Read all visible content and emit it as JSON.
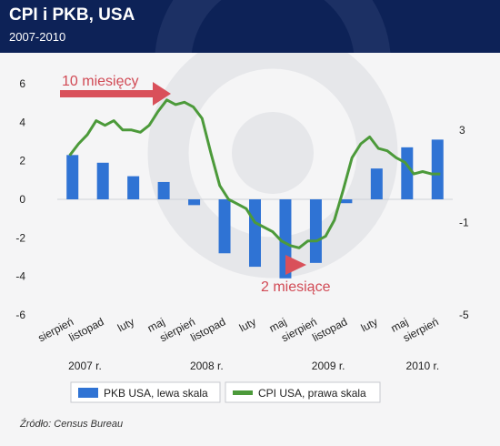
{
  "header": {
    "title": "CPI i PKB, USA",
    "subtitle": "2007-2010"
  },
  "source": "Źródło: Census Bureau",
  "colors": {
    "header_bg": "#0d2257",
    "bars": "#2f73d4",
    "line": "#4c9a3a",
    "arrow": "#d9505a",
    "annotation": "#d14a55"
  },
  "chart_data": {
    "type": "bar+line",
    "left_axis": {
      "ylim": [
        -6,
        6
      ],
      "ticks": [
        -6,
        -4,
        -2,
        0,
        2,
        4,
        6
      ]
    },
    "right_axis": {
      "ylim": [
        -5,
        5
      ],
      "ticks": [
        -5,
        -1,
        3
      ],
      "tick_labels": [
        "-5",
        "-1",
        "3"
      ]
    },
    "x_tick_labels": [
      "sierpień",
      "listopad",
      "luty",
      "maj",
      "sierpień",
      "listopad",
      "luty",
      "maj",
      "sierpień",
      "listopad",
      "luty",
      "maj",
      "sierpień"
    ],
    "year_labels": [
      "2007 r.",
      "2008 r.",
      "2009 r.",
      "2010 r."
    ],
    "series": [
      {
        "name": "PKB USA, lewa skala",
        "type": "bar",
        "axis": "left",
        "values": [
          2.3,
          1.9,
          1.2,
          0.9,
          -0.3,
          -2.8,
          -3.5,
          -4.1,
          -3.3,
          -0.2,
          1.6,
          2.7,
          3.1
        ]
      },
      {
        "name": "CPI USA, prawa skala",
        "type": "line",
        "axis": "right",
        "values": [
          1.9,
          2.4,
          2.8,
          3.4,
          3.2,
          3.4,
          3.0,
          3.0,
          2.9,
          3.2,
          3.8,
          4.3,
          4.1,
          4.2,
          4.0,
          3.5,
          2.0,
          0.6,
          0.0,
          -0.2,
          -0.4,
          -1.0,
          -1.2,
          -1.4,
          -1.8,
          -2.0,
          -2.1,
          -1.8,
          -1.8,
          -1.6,
          -0.9,
          0.4,
          1.8,
          2.4,
          2.7,
          2.2,
          2.1,
          1.8,
          1.6,
          1.1,
          1.2,
          1.1,
          1.1
        ]
      }
    ],
    "annotations": [
      {
        "text": "10 miesięcy"
      },
      {
        "text": "2 miesiące"
      }
    ]
  }
}
